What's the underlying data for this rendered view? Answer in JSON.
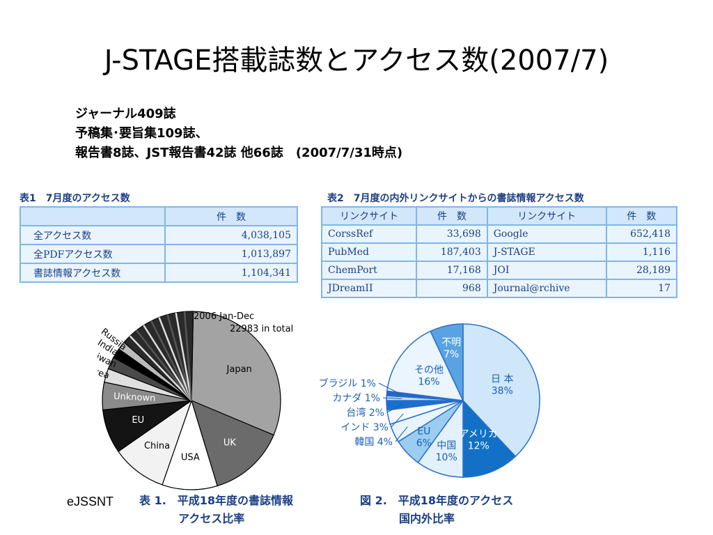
{
  "slide": {
    "title": "J-STAGE搭載誌数とアクセス数(2007/7)",
    "summary": [
      "ジャーナル409誌",
      "予稿集･要旨集109誌、",
      "報告書8誌、JST報告書42誌 他66誌　(2007/7/31時点)"
    ],
    "footer": "eJSSNT"
  },
  "table1": {
    "caption": "表1　7月度のアクセス数",
    "header": [
      "",
      "件　数"
    ],
    "rows": [
      [
        "全アクセス数",
        "4,038,105"
      ],
      [
        "全PDFアクセス数",
        "1,013,897"
      ],
      [
        "書誌情報アクセス数",
        "1,104,341"
      ]
    ]
  },
  "table2": {
    "caption": "表2　7月度の内外リンクサイトからの書誌情報アクセス数",
    "header": [
      "リンクサイト",
      "件　数",
      "リンクサイト",
      "件　数"
    ],
    "rows": [
      [
        "CorssRef",
        "33,698",
        "Google",
        "652,418"
      ],
      [
        "PubMed",
        "187,403",
        "J-STAGE",
        "1,116"
      ],
      [
        "ChemPort",
        "17,168",
        "JOI",
        "28,189"
      ],
      [
        "JDreamII",
        "968",
        "Journal@rchive",
        "17"
      ]
    ]
  },
  "captions": {
    "fig1": [
      "表 1.　平成18年度の書誌情報",
      "アクセス比率"
    ],
    "fig2": [
      "図 2.　平成18年度のアクセス",
      "国内外比率"
    ]
  },
  "chart_data": [
    {
      "type": "pie",
      "title": "2006 Jan-Dec",
      "subtitle": "22983 in total",
      "slices": [
        {
          "label": "Japan",
          "value": 31,
          "color": "#a3a3a3"
        },
        {
          "label": "UK",
          "value": 14,
          "color": "#6b6b6b"
        },
        {
          "label": "USA",
          "value": 10,
          "color": "#ffffff"
        },
        {
          "label": "China",
          "value": 10,
          "color": "#f2f2f2"
        },
        {
          "label": "EU",
          "value": 8,
          "color": "#141414"
        },
        {
          "label": "Unknown",
          "value": 5,
          "color": "#8a8a8a"
        },
        {
          "label": "Korea",
          "value": 2.5,
          "color": "#e0e0e0"
        },
        {
          "label": "Taiwan",
          "value": 2.2,
          "color": "#4a4a4a"
        },
        {
          "label": "India",
          "value": 1.8,
          "color": "#000000"
        },
        {
          "label": "Russia",
          "value": 1.5,
          "color": "#bbbbbb"
        },
        {
          "label": "",
          "value": 14,
          "color": "#2a2a2a"
        }
      ]
    },
    {
      "type": "pie",
      "slices": [
        {
          "label": "日 本",
          "pct": "38%",
          "value": 38,
          "color": "#cfe7f9"
        },
        {
          "label": "アメリカ",
          "pct": "12%",
          "value": 12,
          "color": "#1271c6"
        },
        {
          "label": "中国",
          "pct": "10%",
          "value": 10,
          "color": "#e3f1fc"
        },
        {
          "label": "EU",
          "pct": "6%",
          "value": 6,
          "color": "#9ccdf0"
        },
        {
          "label": "韓国",
          "pct": "4%",
          "value": 4,
          "color": "#e8f4fd"
        },
        {
          "label": "インド",
          "pct": "3%",
          "value": 3,
          "color": "#f4faff"
        },
        {
          "label": "台湾",
          "pct": "2%",
          "value": 2,
          "color": "#1a6fd0"
        },
        {
          "label": "カナダ",
          "pct": "1%",
          "value": 1,
          "color": "#bfe0f7"
        },
        {
          "label": "ブラジル",
          "pct": "1%",
          "value": 1,
          "color": "#2b63c4"
        },
        {
          "label": "その他",
          "pct": "16%",
          "value": 16,
          "color": "#eaf5fd"
        },
        {
          "label": "不明",
          "pct": "7%",
          "value": 7,
          "color": "#5aa3e2"
        }
      ]
    }
  ]
}
